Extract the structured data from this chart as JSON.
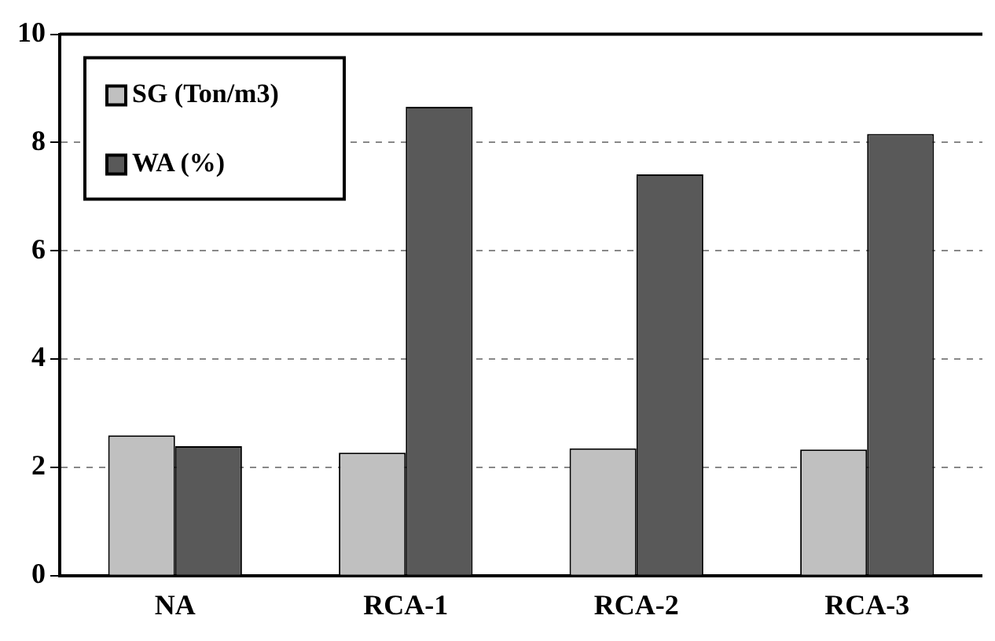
{
  "chart_data": {
    "type": "bar",
    "categories": [
      "NA",
      "RCA-1",
      "RCA-2",
      "RCA-3"
    ],
    "series": [
      {
        "name": "SG (Ton/m3)",
        "color": "#c0c0c0",
        "values": [
          2.59,
          2.27,
          2.35,
          2.33
        ]
      },
      {
        "name": "WA (%)",
        "color": "#595959",
        "values": [
          2.39,
          8.66,
          7.41,
          8.16
        ]
      }
    ],
    "ylim": [
      0,
      10
    ],
    "yticks": [
      0,
      2,
      4,
      6,
      8,
      10
    ],
    "grid": "y",
    "legend": "top left"
  }
}
